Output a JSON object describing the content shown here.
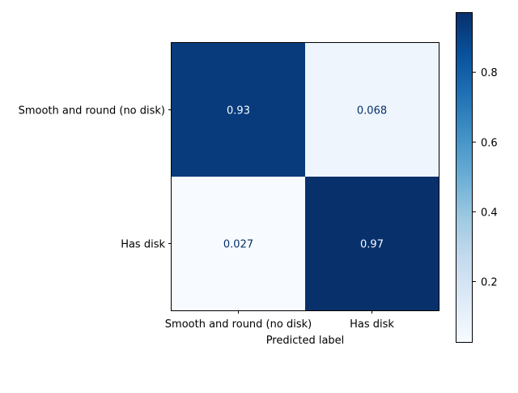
{
  "chart_data": {
    "type": "heatmap",
    "categories_x": [
      "Smooth and round (no disk)",
      "Has disk"
    ],
    "categories_y": [
      "Smooth and round (no disk)",
      "Has disk"
    ],
    "values": [
      [
        0.93,
        0.068
      ],
      [
        0.027,
        0.97
      ]
    ],
    "cell_labels": [
      [
        "0.93",
        "0.068"
      ],
      [
        "0.027",
        "0.97"
      ]
    ],
    "xlabel": "Predicted label",
    "ylabel": "",
    "colormap": "Blues",
    "colorbar": {
      "range": [
        0.027,
        0.97
      ],
      "ticks": [
        0.2,
        0.4,
        0.6,
        0.8
      ],
      "tick_labels": [
        "0.2",
        "0.4",
        "0.6",
        "0.8"
      ]
    }
  }
}
